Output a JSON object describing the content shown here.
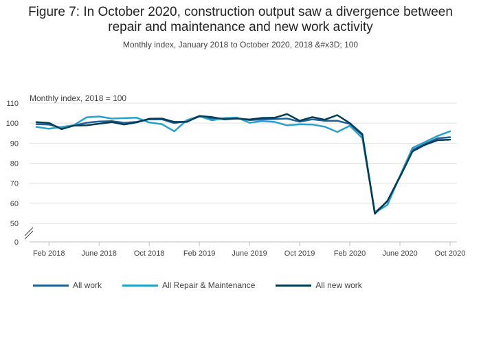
{
  "title_line1": "Figure 7: In October 2020, construction output saw a divergence between",
  "title_line2": "repair and maintenance and new work activity",
  "subtitle": "Monthly index, January 2018 to October 2020, 2018 &#x3D; 100",
  "chart_data": {
    "type": "line",
    "ylabel": "Monthly index, 2018 = 100",
    "ylim": [
      50,
      110
    ],
    "y_axis_break": true,
    "y_ticks": [
      "110",
      "100",
      "90",
      "80",
      "70",
      "60",
      "50",
      "0"
    ],
    "x_tick_labels": [
      "Feb 2018",
      "June 2018",
      "Oct 2018",
      "Feb 2019",
      "June 2019",
      "Oct 2019",
      "Feb 2020",
      "June 2020",
      "Oct 2020"
    ],
    "x_tick_month_index": [
      1,
      5,
      9,
      13,
      17,
      21,
      25,
      29,
      33
    ],
    "grid": true,
    "legend_position": "bottom",
    "x": [
      "Jan 2018",
      "Feb 2018",
      "Mar 2018",
      "Apr 2018",
      "May 2018",
      "Jun 2018",
      "Jul 2018",
      "Aug 2018",
      "Sep 2018",
      "Oct 2018",
      "Nov 2018",
      "Dec 2018",
      "Jan 2019",
      "Feb 2019",
      "Mar 2019",
      "Apr 2019",
      "May 2019",
      "Jun 2019",
      "Jul 2019",
      "Aug 2019",
      "Sep 2019",
      "Oct 2019",
      "Nov 2019",
      "Dec 2019",
      "Jan 2020",
      "Feb 2020",
      "Mar 2020",
      "Apr 2020",
      "May 2020",
      "Jun 2020",
      "Jul 2020",
      "Aug 2020",
      "Sep 2020",
      "Oct 2020"
    ],
    "series": [
      {
        "name": "All work",
        "color": "#206095",
        "values": [
          99.5,
          99.3,
          97.6,
          98.8,
          100.2,
          100.8,
          101.0,
          100.2,
          100.6,
          101.9,
          101.9,
          100.0,
          101.0,
          103.3,
          102.3,
          102.4,
          102.5,
          101.5,
          101.8,
          102.0,
          102.3,
          100.7,
          101.9,
          101.2,
          101.2,
          99.6,
          94.0,
          55.4,
          60.9,
          73.6,
          86.6,
          89.6,
          92.4,
          93.0
        ]
      },
      {
        "name": "All Repair & Maintenance",
        "color": "#27a0cc",
        "values": [
          98.1,
          97.2,
          98.1,
          99.0,
          102.9,
          103.3,
          102.3,
          102.5,
          102.7,
          100.3,
          99.5,
          95.9,
          101.5,
          103.5,
          101.4,
          102.6,
          102.8,
          100.2,
          101.0,
          100.6,
          98.9,
          99.4,
          99.3,
          98.2,
          95.6,
          98.7,
          92.5,
          55.4,
          59.2,
          73.7,
          87.6,
          90.6,
          93.6,
          95.9
        ]
      },
      {
        "name": "All new work",
        "color": "#003c57",
        "values": [
          100.5,
          100.1,
          97.0,
          98.8,
          98.9,
          99.7,
          100.5,
          99.3,
          100.4,
          102.2,
          102.3,
          100.6,
          100.6,
          103.6,
          103.0,
          101.9,
          102.3,
          101.8,
          102.6,
          102.7,
          104.5,
          101.2,
          103.0,
          101.7,
          104.0,
          100.0,
          94.5,
          54.8,
          61.2,
          73.1,
          85.9,
          89.2,
          91.5,
          91.8
        ]
      }
    ]
  }
}
